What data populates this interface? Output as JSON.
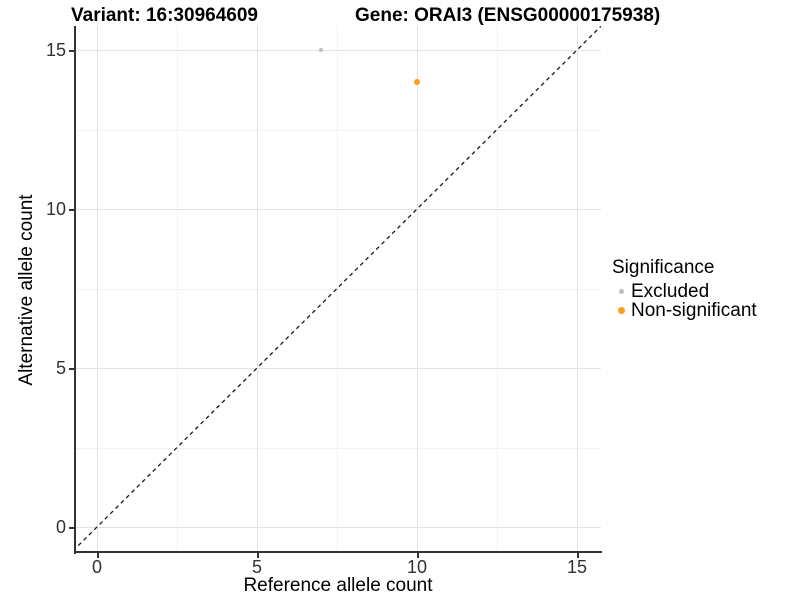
{
  "chart_data": {
    "type": "scatter",
    "titles": {
      "left": "Variant: 16:30964609",
      "right": "Gene: ORAI3 (ENSG00000175938)"
    },
    "xlabel": "Reference allele count",
    "ylabel": "Alternative allele count",
    "xlim": [
      -0.75,
      15.75
    ],
    "ylim": [
      -0.75,
      15.75
    ],
    "x_ticks": [
      0,
      5,
      10,
      15
    ],
    "y_ticks": [
      0,
      5,
      10,
      15
    ],
    "x_minor_ticks": [
      2.5,
      7.5,
      12.5
    ],
    "y_minor_ticks": [
      2.5,
      7.5,
      12.5
    ],
    "grid": true,
    "identity_line": {
      "style": "dashed",
      "slope": 1,
      "intercept": 0,
      "color": "#1a1a1a"
    },
    "points": [
      {
        "x": 7,
        "y": 15,
        "series": "Excluded",
        "color": "#BEBEBE",
        "radius": 2.3
      },
      {
        "x": 10,
        "y": 14,
        "series": "Non-significant",
        "color": "#F89E20",
        "radius": 2.9
      }
    ],
    "legend": {
      "title": "Significance",
      "position": "right",
      "entries": [
        {
          "label": "Excluded",
          "color": "#BEBEBE",
          "dot_size": 5
        },
        {
          "label": "Non-significant",
          "color": "#F89E20",
          "dot_size": 7
        }
      ]
    }
  }
}
